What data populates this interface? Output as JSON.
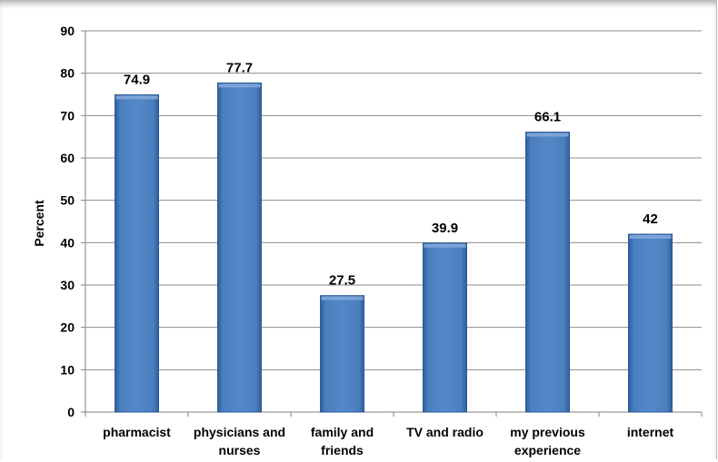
{
  "chart_data": {
    "type": "bar",
    "title": "",
    "xlabel": "",
    "ylabel": "Percent",
    "ylim": [
      0,
      90
    ],
    "yticks": [
      0,
      10,
      20,
      30,
      40,
      50,
      60,
      70,
      80,
      90
    ],
    "grid": true,
    "legend": "none",
    "categories": [
      [
        "pharmacist"
      ],
      [
        "physicians and",
        "nurses"
      ],
      [
        "family and",
        "friends"
      ],
      [
        "TV and radio"
      ],
      [
        "my previous",
        "experience"
      ],
      [
        "internet"
      ]
    ],
    "values": [
      74.9,
      77.7,
      27.5,
      39.9,
      66.1,
      42
    ],
    "value_labels": [
      "74.9",
      "77.7",
      "27.5",
      "39.9",
      "66.1",
      "42"
    ],
    "colors": {
      "bar": "#4f81bd",
      "bar_dark": "#2c5a93",
      "bar_light": "#7fa6d8",
      "grid": "#8c8c8c"
    }
  }
}
